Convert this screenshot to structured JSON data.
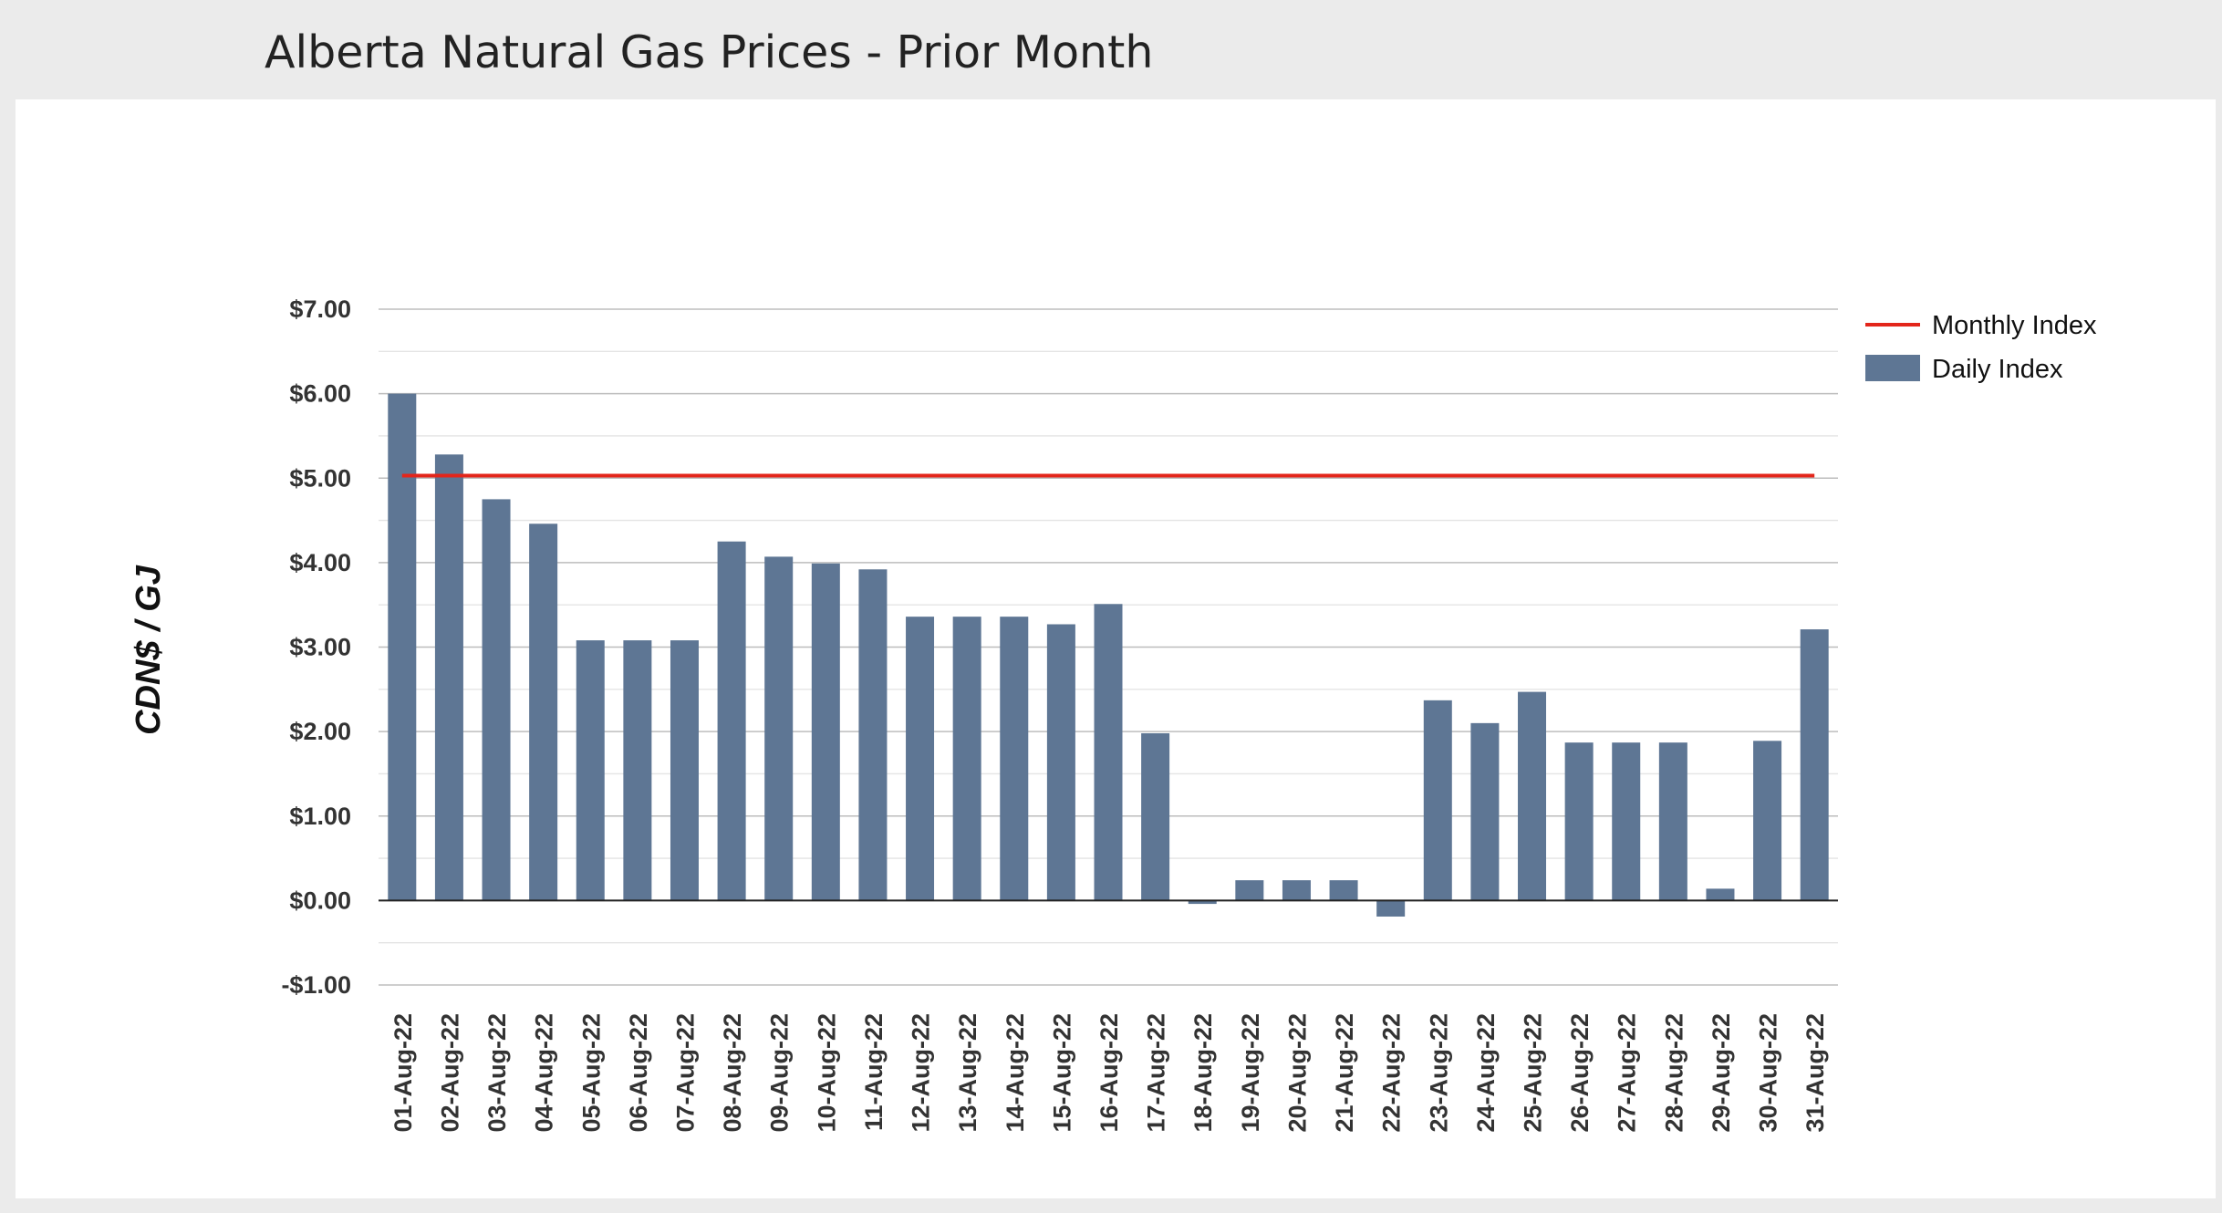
{
  "page": {
    "title": "Alberta Natural Gas Prices - Prior Month"
  },
  "colors": {
    "bar": "#5e7694",
    "monthly_line": "#e3261b",
    "grid_major": "#bdbdbd",
    "grid_minor": "#e4e4e4",
    "zero_line": "#222222"
  },
  "chart_data": {
    "type": "bar",
    "title": "Alberta Natural Gas Prices - Prior Month",
    "xlabel": "",
    "ylabel": "CDN$ / GJ",
    "ylim": [
      -1.0,
      7.0
    ],
    "yticks": [
      7,
      6,
      5,
      4,
      3,
      2,
      1,
      0,
      -1
    ],
    "ytick_labels": [
      "$7.00",
      "$6.00",
      "$5.00",
      "$4.00",
      "$3.00",
      "$2.00",
      "$1.00",
      "$0.00",
      "-$1.00"
    ],
    "grid": true,
    "legend_position": "top-right",
    "categories": [
      "01-Aug-22",
      "02-Aug-22",
      "03-Aug-22",
      "04-Aug-22",
      "05-Aug-22",
      "06-Aug-22",
      "07-Aug-22",
      "08-Aug-22",
      "09-Aug-22",
      "10-Aug-22",
      "11-Aug-22",
      "12-Aug-22",
      "13-Aug-22",
      "14-Aug-22",
      "15-Aug-22",
      "16-Aug-22",
      "17-Aug-22",
      "18-Aug-22",
      "19-Aug-22",
      "20-Aug-22",
      "21-Aug-22",
      "22-Aug-22",
      "23-Aug-22",
      "24-Aug-22",
      "25-Aug-22",
      "26-Aug-22",
      "27-Aug-22",
      "28-Aug-22",
      "29-Aug-22",
      "30-Aug-22",
      "31-Aug-22"
    ],
    "series": [
      {
        "name": "Daily Index",
        "type": "bar",
        "values": [
          6.0,
          5.28,
          4.75,
          4.46,
          3.08,
          3.08,
          3.08,
          4.25,
          4.07,
          3.99,
          3.92,
          3.36,
          3.36,
          3.36,
          3.27,
          3.51,
          1.98,
          -0.04,
          0.24,
          0.24,
          0.24,
          -0.19,
          2.37,
          2.1,
          2.47,
          1.87,
          1.87,
          1.87,
          0.14,
          1.89,
          3.21
        ]
      },
      {
        "name": "Monthly Index",
        "type": "line",
        "value": 5.03
      }
    ]
  }
}
